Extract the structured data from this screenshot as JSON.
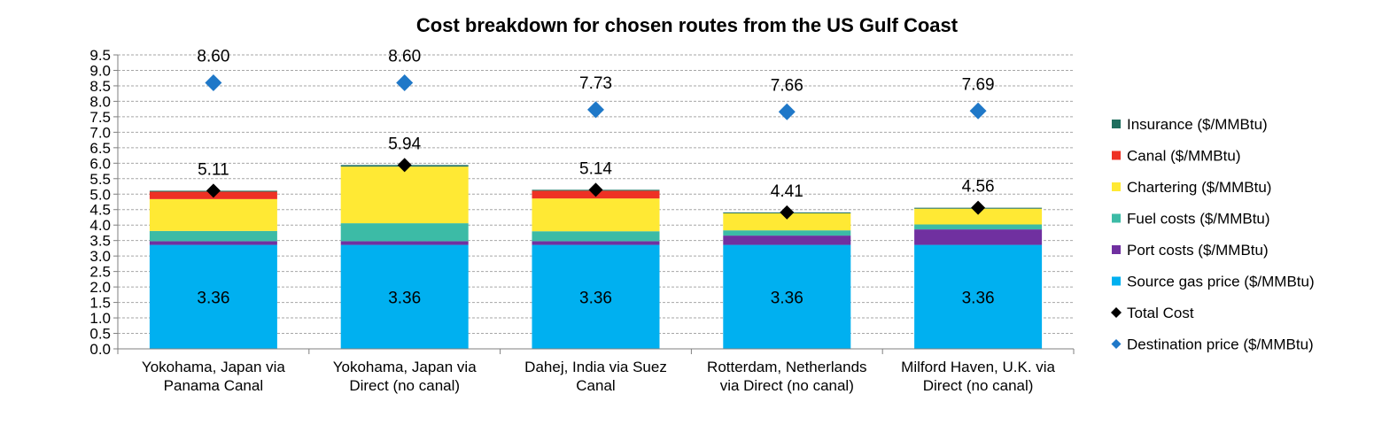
{
  "chart_data": {
    "type": "bar",
    "stacked": true,
    "title": "Cost breakdown for chosen routes from the US Gulf Coast",
    "xlabel": "",
    "ylabel": "",
    "ylim": [
      0,
      9.5
    ],
    "ytick_step": 0.5,
    "ytick_labels": [
      "0.0",
      "0.5",
      "1.0",
      "1.5",
      "2.0",
      "2.5",
      "3.0",
      "3.5",
      "4.0",
      "4.5",
      "5.0",
      "5.5",
      "6.0",
      "6.5",
      "7.0",
      "7.5",
      "8.0",
      "8.5",
      "9.0",
      "9.5"
    ],
    "grid": "horizontal dashed",
    "legend_position": "right",
    "categories": [
      [
        "Yokohama, Japan via",
        "Panama Canal"
      ],
      [
        "Yokohama, Japan via",
        "Direct (no canal)"
      ],
      [
        "Dahej, India via Suez",
        "Canal"
      ],
      [
        "Rotterdam, Netherlands",
        "via Direct (no canal)"
      ],
      [
        "Milford Haven, U.K. via",
        "Direct (no canal)"
      ]
    ],
    "series": [
      {
        "name": "Source gas price ($/MMBtu)",
        "color": "#00B0F0",
        "values": [
          3.36,
          3.36,
          3.36,
          3.36,
          3.36
        ]
      },
      {
        "name": "Port costs ($/MMBtu)",
        "color": "#7030A0",
        "values": [
          0.12,
          0.12,
          0.12,
          0.3,
          0.5
        ]
      },
      {
        "name": "Fuel costs ($/MMBtu)",
        "color": "#3CBBA6",
        "values": [
          0.33,
          0.58,
          0.32,
          0.17,
          0.16
        ]
      },
      {
        "name": "Chartering ($/MMBtu)",
        "color": "#FFE934",
        "values": [
          1.03,
          1.83,
          1.06,
          0.55,
          0.51
        ]
      },
      {
        "name": "Canal ($/MMBtu)",
        "color": "#EE3124",
        "values": [
          0.24,
          0.0,
          0.25,
          0.0,
          0.0
        ]
      },
      {
        "name": "Insurance ($/MMBtu)",
        "color": "#1E6E5E",
        "values": [
          0.03,
          0.05,
          0.03,
          0.03,
          0.03
        ]
      }
    ],
    "source_labels": [
      "3.36",
      "3.36",
      "3.36",
      "3.36",
      "3.36"
    ],
    "total_cost": {
      "name": "Total Cost",
      "color": "#000000",
      "values": [
        5.11,
        5.94,
        5.14,
        4.41,
        4.56
      ],
      "labels": [
        "5.11",
        "5.94",
        "5.14",
        "4.41",
        "4.56"
      ]
    },
    "destination_price": {
      "name": "Destination price ($/MMBtu)",
      "color": "#1F78C8",
      "values": [
        8.6,
        8.6,
        7.73,
        7.66,
        7.69
      ],
      "labels": [
        "8.60",
        "8.60",
        "7.73",
        "7.66",
        "7.69"
      ]
    },
    "legend_order": [
      "Insurance ($/MMBtu)",
      "Canal ($/MMBtu)",
      "Chartering ($/MMBtu)",
      "Fuel costs ($/MMBtu)",
      "Port costs ($/MMBtu)",
      "Source gas price ($/MMBtu)",
      "Total Cost",
      "Destination price ($/MMBtu)"
    ]
  }
}
